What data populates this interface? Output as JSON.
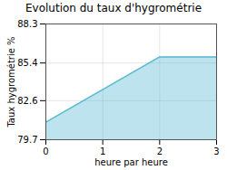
{
  "chart_data": {
    "type": "area",
    "title": "Evolution du taux d'hygrométrie",
    "x": [
      0,
      2,
      3
    ],
    "values": [
      81.0,
      85.85,
      85.85
    ],
    "xlabel": "heure par heure",
    "ylabel": "Taux hygrométrie %",
    "xlim": [
      0,
      3
    ],
    "ylim": [
      79.7,
      88.3
    ],
    "xticks": [
      0,
      1,
      2,
      3
    ],
    "yticks": [
      79.7,
      82.6,
      85.4,
      88.3
    ],
    "grid": true,
    "color": "#5bb8d4"
  }
}
